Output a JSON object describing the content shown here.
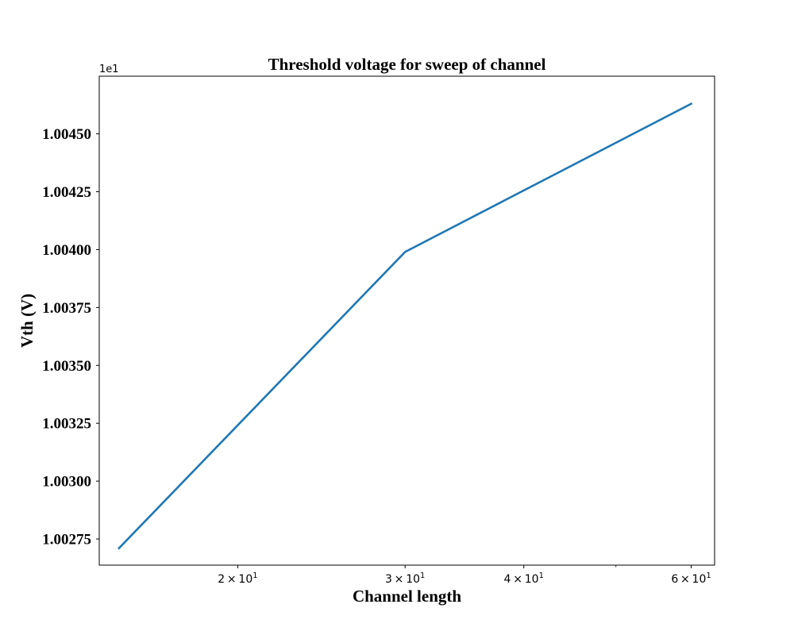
{
  "chart_data": {
    "type": "line",
    "title": "Threshold voltage for sweep of channel",
    "xlabel": "Channel length",
    "ylabel": "Vth (V)",
    "x_scale": "log",
    "x_ticks": [
      {
        "value": 20,
        "base": "2",
        "mantissa_sep": "×",
        "power_base": "10",
        "exp": "1"
      },
      {
        "value": 30,
        "base": "3",
        "mantissa_sep": "×",
        "power_base": "10",
        "exp": "1"
      },
      {
        "value": 40,
        "base": "4",
        "mantissa_sep": "×",
        "power_base": "10",
        "exp": "1"
      },
      {
        "value": 60,
        "base": "6",
        "mantissa_sep": "×",
        "power_base": "10",
        "exp": "1"
      }
    ],
    "x_minor_ticks": [
      50
    ],
    "xlim": [
      14.3,
      63.5
    ],
    "y_offset_label": "1e1",
    "y_ticks": [
      {
        "value": 1.00275,
        "label": "1.00275"
      },
      {
        "value": 1.003,
        "label": "1.00300"
      },
      {
        "value": 1.00325,
        "label": "1.00325"
      },
      {
        "value": 1.0035,
        "label": "1.00350"
      },
      {
        "value": 1.00375,
        "label": "1.00375"
      },
      {
        "value": 1.004,
        "label": "1.00400"
      },
      {
        "value": 1.00425,
        "label": "1.00425"
      },
      {
        "value": 1.0045,
        "label": "1.00450"
      }
    ],
    "ylim": [
      1.002637,
      1.004749
    ],
    "grid": false,
    "series": [
      {
        "color": "#1f77b4",
        "x": [
          15,
          30,
          60
        ],
        "y": [
          1.00271,
          1.00399,
          1.00463
        ]
      }
    ]
  }
}
